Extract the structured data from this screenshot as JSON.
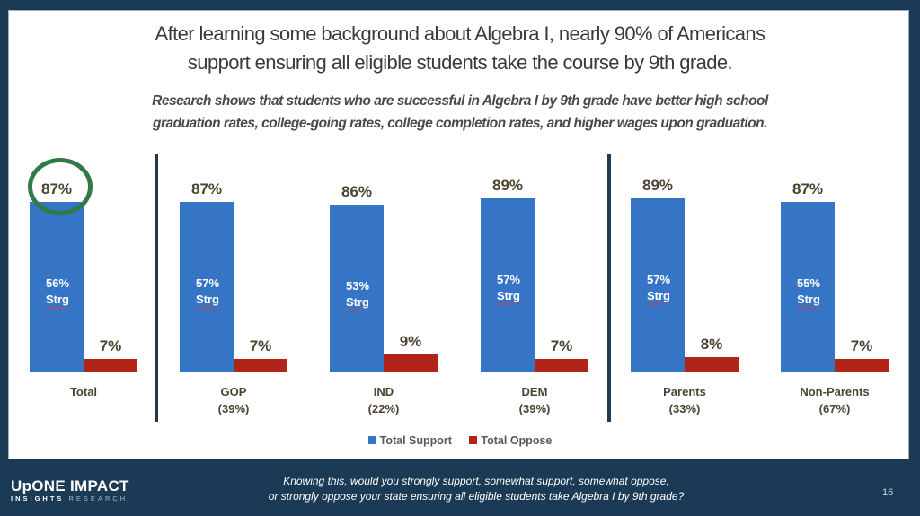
{
  "slide": {
    "title_line1": "After learning some background about Algebra I, nearly 90% of Americans",
    "title_line2": "support ensuring all eligible students take the course by 9th grade.",
    "subtitle_line1": "Research shows that students who are successful in Algebra I by 9th grade have better high school",
    "subtitle_line2": "graduation rates, college-going rates, college completion rates, and higher wages upon graduation.",
    "question_line1": "Knowing this, would you strongly support, somewhat support, somewhat oppose,",
    "question_line2": "or strongly oppose your state ensuring all eligible students take Algebra I by 9th grade?",
    "page_number": "16",
    "logo_line1": "UpONE IMPACT",
    "logo_line2_a": "INSIGHTS",
    "logo_line2_b": "RESEARCH"
  },
  "colors": {
    "support": "#3675c6",
    "oppose": "#b0241a",
    "highlight_circle": "#2f7a45",
    "background": "#1b3a55"
  },
  "legend": {
    "support_label": "Total Support",
    "oppose_label": "Total Oppose"
  },
  "groups": [
    {
      "name": "Total",
      "share": "",
      "support": "87%",
      "strong": "56%",
      "strong_label": "Strg",
      "oppose": "7%"
    },
    {
      "name": "GOP",
      "share": "(39%)",
      "support": "87%",
      "strong": "57%",
      "strong_label": "Strg",
      "oppose": "7%"
    },
    {
      "name": "IND",
      "share": "(22%)",
      "support": "86%",
      "strong": "53%",
      "strong_label": "Strg",
      "oppose": "9%"
    },
    {
      "name": "DEM",
      "share": "(39%)",
      "support": "89%",
      "strong": "57%",
      "strong_label": "Strg",
      "oppose": "7%"
    },
    {
      "name": "Parents",
      "share": "(33%)",
      "support": "89%",
      "strong": "57%",
      "strong_label": "Strg",
      "oppose": "8%"
    },
    {
      "name": "Non-Parents",
      "share": "(67%)",
      "support": "87%",
      "strong": "55%",
      "strong_label": "Strg",
      "oppose": "7%"
    }
  ],
  "chart_data": {
    "type": "bar",
    "title": "After learning some background about Algebra I, nearly 90% of Americans support ensuring all eligible students take the course by 9th grade.",
    "subtitle": "Research shows that students who are successful in Algebra I by 9th grade have better high school graduation rates, college-going rates, college completion rates, and higher wages upon graduation.",
    "categories": [
      "Total",
      "GOP (39%)",
      "IND (22%)",
      "DEM (39%)",
      "Parents (33%)",
      "Non-Parents (67%)"
    ],
    "series": [
      {
        "name": "Total Support",
        "color": "#3675c6",
        "values": [
          87,
          87,
          86,
          89,
          89,
          87
        ]
      },
      {
        "name": "Total Oppose",
        "color": "#b0241a",
        "values": [
          7,
          7,
          9,
          7,
          8,
          7
        ]
      }
    ],
    "annotations": {
      "strong_support": [
        56,
        57,
        53,
        57,
        57,
        55
      ],
      "strong_support_label": "Strg",
      "highlighted": "Total support 87% circled"
    },
    "xlabel": "",
    "ylabel": "",
    "ylim": [
      0,
      100
    ],
    "grid": false,
    "legend_position": "bottom",
    "dividers_after": [
      "Total",
      "DEM (39%)"
    ]
  }
}
